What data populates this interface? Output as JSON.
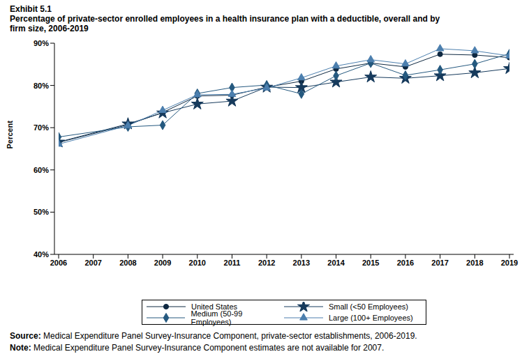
{
  "chart_data": {
    "type": "line",
    "title": "Exhibit 5.1",
    "subtitle": "Percentage of private-sector enrolled employees in a health insurance plan with a deductible, overall and by firm size, 2006-2019",
    "y_label": "Percent",
    "x": [
      2006,
      2008,
      2009,
      2010,
      2011,
      2012,
      2013,
      2014,
      2015,
      2016,
      2017,
      2018,
      2019
    ],
    "xlim": [
      2006,
      2019
    ],
    "xticks": [
      2006,
      2007,
      2008,
      2009,
      2010,
      2011,
      2012,
      2013,
      2014,
      2015,
      2016,
      2017,
      2018,
      2019
    ],
    "ylim": [
      40,
      90
    ],
    "yticks": [
      {
        "value": 40,
        "label": "40%"
      },
      {
        "value": 50,
        "label": "50%"
      },
      {
        "value": 60,
        "label": "60%"
      },
      {
        "value": 70,
        "label": "70%"
      },
      {
        "value": 80,
        "label": "80%"
      },
      {
        "value": 90,
        "label": "90%"
      }
    ],
    "grid": false,
    "legend": "bottom",
    "series": [
      {
        "name": "United States",
        "color": "#0e2841",
        "marker": "circle",
        "values": [
          66.5,
          70.7,
          73.6,
          77.5,
          77.7,
          79.6,
          81.0,
          83.9,
          85.3,
          84.4,
          87.4,
          87.2,
          86.6
        ]
      },
      {
        "name": "Small (<50 Employees)",
        "color": "#163a5c",
        "marker": "star",
        "values": [
          66.6,
          70.9,
          73.5,
          75.6,
          76.3,
          79.6,
          79.5,
          80.8,
          82.0,
          81.7,
          82.3,
          83.0,
          84.0
        ]
      },
      {
        "name": "Medium (50-99 Employees)",
        "color": "#25597f",
        "marker": "diamond",
        "values": [
          67.8,
          70.2,
          70.6,
          78.1,
          79.5,
          80.1,
          78.0,
          82.3,
          85.3,
          82.4,
          83.7,
          85.1,
          87.5
        ]
      },
      {
        "name": "Large (100+ Employees)",
        "color": "#4c7fae",
        "marker": "triangle",
        "values": [
          66.1,
          70.5,
          74.1,
          77.8,
          77.9,
          79.4,
          81.8,
          84.6,
          86.1,
          85.1,
          88.7,
          88.2,
          87.0
        ]
      }
    ],
    "notes": [
      {
        "label": "Source:",
        "text": "Medical Expenditure Panel Survey-Insurance Component, private-sector establishments, 2006-2019."
      },
      {
        "label": "Note:",
        "text": "Medical Expenditure Panel Survey-Insurance Component estimates are not available for 2007."
      }
    ]
  }
}
